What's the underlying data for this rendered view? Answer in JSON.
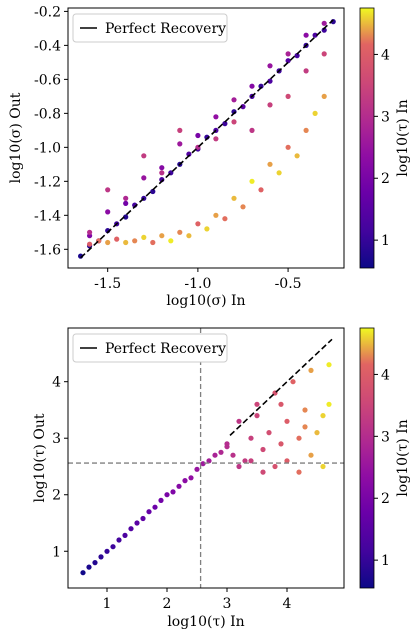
{
  "chart_data": [
    {
      "type": "scatter",
      "xlabel": "log10(σ) In",
      "ylabel": "log10(σ) Out",
      "colorbar_label": "log10(τ) In",
      "xlim": [
        -1.72,
        -0.19
      ],
      "ylim": [
        -1.71,
        -0.18
      ],
      "xticks": [
        "-1.5",
        "-1.0",
        "-0.5"
      ],
      "xtick_values": [
        -1.5,
        -1.0,
        -0.5
      ],
      "yticks": [
        "-1.6",
        "-1.4",
        "-1.2",
        "-1.0",
        "-0.8",
        "-0.6",
        "-0.4",
        "-0.2"
      ],
      "ytick_values": [
        -1.6,
        -1.4,
        -1.2,
        -1.0,
        -0.8,
        -0.6,
        -0.4,
        -0.2
      ],
      "colorbar_ticks": [
        "1",
        "2",
        "3",
        "4"
      ],
      "colorbar_tick_values": [
        1,
        2,
        3,
        4
      ],
      "colorbar_range": [
        0.55,
        4.75
      ],
      "legend": {
        "entries": [
          "Perfect Recovery"
        ],
        "placement": "top-left"
      },
      "reference_line": {
        "name": "Perfect Recovery",
        "x": [
          -1.65,
          -0.25
        ],
        "y": [
          -1.65,
          -0.25
        ]
      },
      "series": [
        {
          "x": [
            -1.65,
            -1.6,
            -1.55,
            -1.5,
            -1.45,
            -1.4,
            -1.35,
            -1.3,
            -1.25,
            -1.2,
            -1.15,
            -1.1,
            -1.05,
            -1.0,
            -0.95,
            -0.9,
            -0.85,
            -0.8,
            -0.75,
            -0.7,
            -0.65,
            -0.6,
            -0.55,
            -0.5,
            -0.45,
            -0.4,
            -0.35,
            -0.3,
            -0.25
          ],
          "y": [
            -1.64,
            -1.58,
            -1.55,
            -1.49,
            -1.45,
            -1.41,
            -1.34,
            -1.3,
            -1.26,
            -1.19,
            -1.15,
            -1.1,
            -1.04,
            -1.01,
            -0.94,
            -0.9,
            -0.86,
            -0.79,
            -0.76,
            -0.7,
            -0.64,
            -0.61,
            -0.55,
            -0.49,
            -0.46,
            -0.4,
            -0.34,
            -0.31,
            -0.26
          ],
          "c": [
            0.7,
            0.8,
            1.0,
            0.9,
            1.1,
            0.8,
            1.2,
            1.0,
            0.9,
            1.3,
            1.1,
            0.8,
            1.4,
            1.2,
            1.0,
            1.3,
            1.1,
            0.9,
            1.5,
            1.2,
            1.0,
            1.3,
            1.1,
            1.4,
            1.2,
            1.0,
            1.3,
            1.1,
            0.9
          ]
        },
        {
          "x": [
            -1.6,
            -1.5,
            -1.4,
            -1.3,
            -1.2,
            -1.1,
            -1.0,
            -0.9,
            -0.8,
            -0.7,
            -0.6,
            -0.5,
            -0.4,
            -0.3
          ],
          "y": [
            -1.52,
            -1.38,
            -1.33,
            -1.18,
            -1.12,
            -0.98,
            -0.93,
            -0.82,
            -0.72,
            -0.64,
            -0.52,
            -0.45,
            -0.34,
            -0.27
          ],
          "c": [
            2.1,
            2.3,
            1.9,
            2.5,
            2.2,
            2.6,
            2.0,
            2.4,
            2.7,
            2.2,
            2.5,
            2.8,
            2.3,
            2.6
          ]
        },
        {
          "x": [
            -1.6,
            -1.5,
            -1.4,
            -1.3,
            -1.2,
            -1.1,
            -1.0,
            -0.9,
            -0.8,
            -0.7,
            -0.6,
            -0.5,
            -0.4,
            -0.3
          ],
          "y": [
            -1.5,
            -1.25,
            -1.3,
            -1.05,
            -1.15,
            -0.9,
            -1.0,
            -0.95,
            -0.85,
            -0.9,
            -0.75,
            -0.7,
            -0.55,
            -0.45
          ],
          "c": [
            3.0,
            3.2,
            2.9,
            3.3,
            3.1,
            3.4,
            3.0,
            3.3,
            3.5,
            3.2,
            3.4,
            3.6,
            3.3,
            3.5
          ]
        },
        {
          "x": [
            -1.6,
            -1.55,
            -1.5,
            -1.45,
            -1.4,
            -1.35,
            -1.3,
            -1.25,
            -1.2,
            -1.15,
            -1.1,
            -1.05,
            -1.0,
            -0.95,
            -0.9,
            -0.85,
            -0.8,
            -0.75,
            -0.7,
            -0.65,
            -0.6,
            -0.55,
            -0.5,
            -0.45,
            -0.4,
            -0.35,
            -0.3
          ],
          "y": [
            -1.57,
            -1.55,
            -1.56,
            -1.54,
            -1.56,
            -1.55,
            -1.53,
            -1.56,
            -1.52,
            -1.55,
            -1.5,
            -1.52,
            -1.45,
            -1.48,
            -1.4,
            -1.42,
            -1.3,
            -1.35,
            -1.2,
            -1.25,
            -1.1,
            -1.15,
            -1.0,
            -1.05,
            -0.9,
            -0.8,
            -0.7
          ],
          "c": [
            4.0,
            4.2,
            4.4,
            4.1,
            4.5,
            4.3,
            4.6,
            4.2,
            4.4,
            4.7,
            4.3,
            4.5,
            4.1,
            4.6,
            4.4,
            4.2,
            4.5,
            4.3,
            4.7,
            4.1,
            4.4,
            4.6,
            4.2,
            4.5,
            4.3,
            4.6,
            4.4
          ]
        }
      ]
    },
    {
      "type": "scatter",
      "xlabel": "log10(τ) In",
      "ylabel": "log10(τ) Out",
      "colorbar_label": "log10(τ) In",
      "xlim": [
        0.35,
        4.95
      ],
      "ylim": [
        0.35,
        4.95
      ],
      "xticks": [
        "1",
        "2",
        "3",
        "4"
      ],
      "xtick_values": [
        1,
        2,
        3,
        4
      ],
      "yticks": [
        "1",
        "2",
        "3",
        "4"
      ],
      "ytick_values": [
        1,
        2,
        3,
        4
      ],
      "colorbar_ticks": [
        "1",
        "2",
        "3",
        "4"
      ],
      "colorbar_tick_values": [
        1,
        2,
        3,
        4
      ],
      "colorbar_range": [
        0.55,
        4.75
      ],
      "legend": {
        "entries": [
          "Perfect Recovery"
        ],
        "placement": "top-left"
      },
      "reference_line": {
        "name": "Perfect Recovery",
        "x": [
          3.05,
          4.75
        ],
        "y": [
          3.05,
          4.75
        ]
      },
      "threshold_lines": {
        "vertical_x": 2.56,
        "horizontal_y": 2.56
      },
      "series": [
        {
          "x": [
            0.6,
            0.7,
            0.8,
            0.9,
            1.0,
            1.1,
            1.2,
            1.3,
            1.4,
            1.5,
            1.6,
            1.7,
            1.8,
            1.9,
            2.0,
            2.1,
            2.2,
            2.3,
            2.4,
            2.5,
            2.6,
            2.7,
            2.8,
            2.9,
            3.0
          ],
          "y": [
            0.62,
            0.72,
            0.8,
            0.9,
            1.0,
            1.08,
            1.2,
            1.28,
            1.4,
            1.5,
            1.58,
            1.7,
            1.78,
            1.9,
            2.0,
            2.05,
            2.15,
            2.25,
            2.3,
            2.45,
            2.55,
            2.6,
            2.7,
            2.75,
            2.85
          ],
          "c": [
            0.6,
            0.7,
            0.8,
            0.9,
            1.0,
            1.1,
            1.2,
            1.3,
            1.4,
            1.5,
            1.6,
            1.7,
            1.8,
            1.9,
            2.0,
            2.1,
            2.2,
            2.3,
            2.4,
            2.5,
            2.6,
            2.7,
            2.8,
            2.9,
            3.0
          ]
        },
        {
          "x": [
            3.0,
            3.1,
            3.2,
            3.3,
            3.4,
            3.5,
            3.6,
            3.7,
            3.8,
            3.9,
            4.0,
            4.1,
            4.2,
            4.3,
            4.4,
            4.5,
            4.6,
            4.7
          ],
          "y": [
            2.9,
            2.7,
            3.3,
            2.6,
            3.0,
            3.6,
            2.8,
            3.1,
            3.8,
            2.9,
            3.3,
            4.0,
            3.0,
            3.5,
            4.2,
            3.1,
            3.4,
            4.3
          ],
          "c": [
            3.0,
            3.1,
            3.2,
            3.3,
            3.4,
            3.5,
            3.6,
            3.7,
            3.8,
            3.9,
            4.0,
            4.1,
            4.2,
            4.3,
            4.4,
            4.5,
            4.6,
            4.7
          ]
        },
        {
          "x": [
            3.2,
            3.4,
            3.6,
            3.8,
            4.0,
            4.2,
            4.4,
            4.6,
            3.5,
            3.9,
            4.3,
            4.7
          ],
          "y": [
            2.5,
            2.6,
            2.4,
            2.5,
            2.6,
            2.4,
            2.7,
            2.5,
            3.4,
            3.6,
            3.2,
            3.6
          ],
          "c": [
            3.2,
            3.4,
            3.6,
            3.8,
            4.0,
            4.2,
            4.4,
            4.6,
            3.5,
            3.9,
            4.3,
            4.7
          ]
        }
      ]
    }
  ]
}
